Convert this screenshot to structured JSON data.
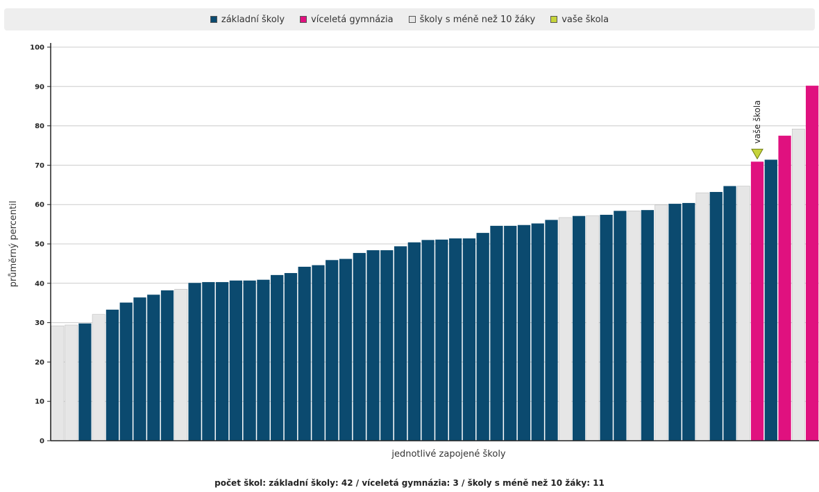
{
  "legend": [
    {
      "label": "základní školy",
      "color": "#0b4a6f"
    },
    {
      "label": "víceletá gymnázia",
      "color": "#e0117f"
    },
    {
      "label": "školy s méně než 10 žáky",
      "color": "#e6e6e6"
    },
    {
      "label": "vaše škola",
      "color": "#c6d43a"
    }
  ],
  "footer": "počet škol: základní školy: 42 / víceletá gymnázia: 3 / školy s méně než 10 žáky: 11",
  "chart_data": {
    "type": "bar",
    "xlabel": "jednotlivé zapojené školy",
    "ylabel": "průměrný percentil",
    "ylim": [
      0,
      100
    ],
    "yticks": [
      0,
      10,
      20,
      30,
      40,
      50,
      60,
      70,
      80,
      90,
      100
    ],
    "grid": true,
    "legend_position": "top",
    "series_colors": {
      "zs": "#0b4a6f",
      "vg": "#e0117f",
      "small": "#e6e6e6",
      "own": "#c6d43a"
    },
    "values": [
      29.2,
      29.4,
      29.8,
      32.1,
      33.3,
      35.1,
      36.4,
      37.1,
      38.2,
      38.5,
      40.1,
      40.3,
      40.3,
      40.7,
      40.7,
      40.9,
      42.1,
      42.6,
      44.2,
      44.6,
      45.9,
      46.2,
      47.7,
      48.4,
      48.4,
      49.4,
      50.4,
      51.0,
      51.1,
      51.4,
      51.4,
      52.8,
      54.6,
      54.6,
      54.8,
      55.2,
      56.1,
      56.7,
      57.1,
      57.2,
      57.4,
      58.4,
      58.4,
      58.6,
      59.9,
      60.2,
      60.4,
      63.0,
      63.2,
      64.7,
      64.7,
      70.9,
      71.4,
      77.5,
      79.2,
      90.2
    ],
    "types": [
      "small",
      "small",
      "zs",
      "small",
      "zs",
      "zs",
      "zs",
      "zs",
      "zs",
      "small",
      "zs",
      "zs",
      "zs",
      "zs",
      "zs",
      "zs",
      "zs",
      "zs",
      "zs",
      "zs",
      "zs",
      "zs",
      "zs",
      "zs",
      "zs",
      "zs",
      "zs",
      "zs",
      "zs",
      "zs",
      "zs",
      "zs",
      "zs",
      "zs",
      "zs",
      "zs",
      "zs",
      "small",
      "zs",
      "small",
      "zs",
      "zs",
      "small",
      "zs",
      "small",
      "zs",
      "zs",
      "small",
      "zs",
      "zs",
      "small",
      "vg",
      "zs",
      "vg",
      "small",
      "vg"
    ],
    "own_school": {
      "index": 51,
      "label": "vaše škola"
    }
  }
}
